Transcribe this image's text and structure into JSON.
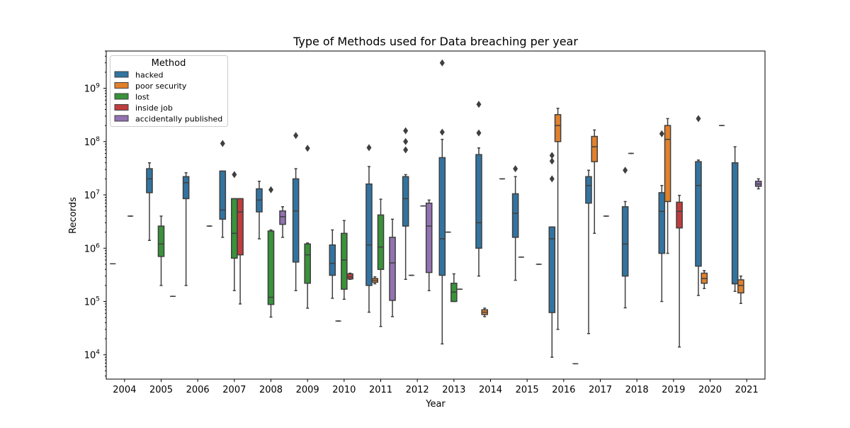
{
  "chart_data": {
    "type": "box",
    "title": "Type of Methods used for Data breaching per year",
    "xlabel": "Year",
    "ylabel": "Records",
    "y_scale": "log",
    "ylim": [
      3500,
      5000000000
    ],
    "y_ticks": [
      {
        "value": 10000,
        "base": "10",
        "exp": "4"
      },
      {
        "value": 100000,
        "base": "10",
        "exp": "5"
      },
      {
        "value": 1000000,
        "base": "10",
        "exp": "6"
      },
      {
        "value": 10000000,
        "base": "10",
        "exp": "7"
      },
      {
        "value": 100000000,
        "base": "10",
        "exp": "8"
      },
      {
        "value": 1000000000,
        "base": "10",
        "exp": "9"
      }
    ],
    "grid": false,
    "legend": {
      "title": "Method",
      "position": "top-left"
    },
    "categories": [
      "2004",
      "2005",
      "2006",
      "2007",
      "2008",
      "2009",
      "2010",
      "2011",
      "2012",
      "2013",
      "2014",
      "2015",
      "2016",
      "2017",
      "2018",
      "2019",
      "2020",
      "2021"
    ],
    "series": [
      {
        "name": "hacked",
        "color": "#3274a1",
        "boxes": [
          {
            "category": "2004",
            "min": 510000,
            "q1": 510000,
            "median": 510000,
            "q3": 510000,
            "max": 510000,
            "outliers": []
          },
          {
            "category": "2005",
            "min": 1400000,
            "q1": 11000000,
            "median": 20000000,
            "q3": 31000000,
            "max": 40000000,
            "outliers": []
          },
          {
            "category": "2006",
            "min": 200000,
            "q1": 8500000,
            "median": 17000000,
            "q3": 22000000,
            "max": 26000000,
            "outliers": []
          },
          {
            "category": "2007",
            "min": 1600000,
            "q1": 3500000,
            "median": 5200000,
            "q3": 28000000,
            "max": 28000000,
            "outliers": [
              92000000
            ]
          },
          {
            "category": "2008",
            "min": 1500000,
            "q1": 4800000,
            "median": 8000000,
            "q3": 13000000,
            "max": 18000000,
            "outliers": []
          },
          {
            "category": "2009",
            "min": 160000,
            "q1": 550000,
            "median": 5000000,
            "q3": 20000000,
            "max": 31000000,
            "outliers": [
              130000000
            ]
          },
          {
            "category": "2010",
            "min": 115000,
            "q1": 310000,
            "median": 520000,
            "q3": 1150000,
            "max": 2200000,
            "outliers": []
          },
          {
            "category": "2011",
            "min": 63000,
            "q1": 200000,
            "median": 1150000,
            "q3": 16000000,
            "max": 34000000,
            "outliers": [
              77000000
            ]
          },
          {
            "category": "2012",
            "min": 260000,
            "q1": 2600000,
            "median": 8500000,
            "q3": 22000000,
            "max": 24000000,
            "outliers": [
              70000000,
              100000000,
              160000000
            ]
          },
          {
            "category": "2013",
            "min": 16000,
            "q1": 310000,
            "median": 1500000,
            "q3": 50000000,
            "max": 110000000,
            "outliers": [
              150000000,
              3000000000
            ]
          },
          {
            "category": "2014",
            "min": 300000,
            "q1": 1000000,
            "median": 3000000,
            "q3": 57000000,
            "max": 76000000,
            "outliers": [
              145000000,
              500000000
            ]
          },
          {
            "category": "2015",
            "min": 250000,
            "q1": 1600000,
            "median": 4500000,
            "q3": 10500000,
            "max": 22000000,
            "outliers": [
              31000000
            ]
          },
          {
            "category": "2016",
            "min": 9000,
            "q1": 62000,
            "median": 1500000,
            "q3": 2500000,
            "max": 2500000,
            "outliers": [
              20000000,
              43000000,
              55000000
            ]
          },
          {
            "category": "2017",
            "min": 25000,
            "q1": 7000000,
            "median": 15000000,
            "q3": 22000000,
            "max": 29000000,
            "outliers": []
          },
          {
            "category": "2018",
            "min": 76000,
            "q1": 300000,
            "median": 1200000,
            "q3": 6000000,
            "max": 7500000,
            "outliers": [
              29000000
            ]
          },
          {
            "category": "2019",
            "min": 100000,
            "q1": 800000,
            "median": 4900000,
            "q3": 11000000,
            "max": 15000000,
            "outliers": [
              140000000
            ]
          },
          {
            "category": "2020",
            "min": 130000,
            "q1": 460000,
            "median": 15000000,
            "q3": 42000000,
            "max": 45000000,
            "outliers": [
              270000000
            ]
          },
          {
            "category": "2021",
            "min": 155000,
            "q1": 215000,
            "median": 215000,
            "q3": 40000000,
            "max": 80000000,
            "outliers": []
          }
        ]
      },
      {
        "name": "poor security",
        "color": "#e1812c",
        "boxes": [
          {
            "category": "2010",
            "min": 43000,
            "q1": 43000,
            "median": 43000,
            "q3": 43000,
            "max": 43000,
            "outliers": []
          },
          {
            "category": "2011",
            "min": 215000,
            "q1": 230000,
            "median": 250000,
            "q3": 270000,
            "max": 290000,
            "outliers": []
          },
          {
            "category": "2012",
            "min": 310000,
            "q1": 310000,
            "median": 310000,
            "q3": 310000,
            "max": 310000,
            "outliers": []
          },
          {
            "category": "2013",
            "min": 2000000,
            "q1": 2000000,
            "median": 2000000,
            "q3": 2000000,
            "max": 2000000,
            "outliers": []
          },
          {
            "category": "2014",
            "min": 52000,
            "q1": 57000,
            "median": 63000,
            "q3": 70000,
            "max": 75000,
            "outliers": []
          },
          {
            "category": "2015",
            "min": 680000,
            "q1": 680000,
            "median": 680000,
            "q3": 680000,
            "max": 680000,
            "outliers": []
          },
          {
            "category": "2016",
            "min": 30000,
            "q1": 100000000,
            "median": 200000000,
            "q3": 320000000,
            "max": 420000000,
            "outliers": []
          },
          {
            "category": "2017",
            "min": 1900000,
            "q1": 42000000,
            "median": 80000000,
            "q3": 125000000,
            "max": 165000000,
            "outliers": []
          },
          {
            "category": "2018",
            "min": 60000000,
            "q1": 60000000,
            "median": 60000000,
            "q3": 60000000,
            "max": 60000000,
            "outliers": []
          },
          {
            "category": "2019",
            "min": 800000,
            "q1": 7500000,
            "median": 110000000,
            "q3": 200000000,
            "max": 270000000,
            "outliers": []
          },
          {
            "category": "2020",
            "min": 175000,
            "q1": 220000,
            "median": 270000,
            "q3": 340000,
            "max": 380000,
            "outliers": []
          },
          {
            "category": "2021",
            "min": 92000,
            "q1": 145000,
            "median": 200000,
            "q3": 255000,
            "max": 300000,
            "outliers": []
          }
        ]
      },
      {
        "name": "lost",
        "color": "#3a923a",
        "boxes": [
          {
            "category": "2005",
            "min": 200000,
            "q1": 700000,
            "median": 1200000,
            "q3": 2600000,
            "max": 4000000,
            "outliers": []
          },
          {
            "category": "2007",
            "min": 160000,
            "q1": 650000,
            "median": 1900000,
            "q3": 8500000,
            "max": 8500000,
            "outliers": [
              24000000
            ]
          },
          {
            "category": "2008",
            "min": 51000,
            "q1": 88000,
            "median": 120000,
            "q3": 2100000,
            "max": 2200000,
            "outliers": [
              12500000
            ]
          },
          {
            "category": "2009",
            "min": 75000,
            "q1": 220000,
            "median": 750000,
            "q3": 1200000,
            "max": 1250000,
            "outliers": [
              75000000
            ]
          },
          {
            "category": "2010",
            "min": 110000,
            "q1": 170000,
            "median": 600000,
            "q3": 1900000,
            "max": 3300000,
            "outliers": []
          },
          {
            "category": "2011",
            "min": 34000,
            "q1": 400000,
            "median": 1050000,
            "q3": 4200000,
            "max": 8300000,
            "outliers": []
          },
          {
            "category": "2013",
            "min": 100000,
            "q1": 100000,
            "median": 150000,
            "q3": 220000,
            "max": 330000,
            "outliers": []
          }
        ]
      },
      {
        "name": "inside job",
        "color": "#c03d3e",
        "boxes": [
          {
            "category": "2004",
            "min": 4000000,
            "q1": 4000000,
            "median": 4000000,
            "q3": 4000000,
            "max": 4000000,
            "outliers": []
          },
          {
            "category": "2007",
            "min": 90000,
            "q1": 750000,
            "median": 4800000,
            "q3": 8500000,
            "max": 8500000,
            "outliers": []
          },
          {
            "category": "2010",
            "min": 260000,
            "q1": 265000,
            "median": 290000,
            "q3": 330000,
            "max": 340000,
            "outliers": []
          },
          {
            "category": "2012",
            "min": 6200000,
            "q1": 6200000,
            "median": 6200000,
            "q3": 6200000,
            "max": 6200000,
            "outliers": []
          },
          {
            "category": "2013",
            "min": 170000,
            "q1": 170000,
            "median": 170000,
            "q3": 170000,
            "max": 170000,
            "outliers": []
          },
          {
            "category": "2017",
            "min": 4000000,
            "q1": 4000000,
            "median": 4000000,
            "q3": 4000000,
            "max": 4000000,
            "outliers": []
          },
          {
            "category": "2019",
            "min": 14000,
            "q1": 2400000,
            "median": 4900000,
            "q3": 7300000,
            "max": 9800000,
            "outliers": []
          }
        ]
      },
      {
        "name": "accidentally published",
        "color": "#9372b2",
        "boxes": [
          {
            "category": "2005",
            "min": 125000,
            "q1": 125000,
            "median": 125000,
            "q3": 125000,
            "max": 125000,
            "outliers": []
          },
          {
            "category": "2006",
            "min": 2600000,
            "q1": 2600000,
            "median": 2600000,
            "q3": 2600000,
            "max": 2600000,
            "outliers": []
          },
          {
            "category": "2008",
            "min": 1600000,
            "q1": 2800000,
            "median": 3900000,
            "q3": 5000000,
            "max": 6000000,
            "outliers": []
          },
          {
            "category": "2011",
            "min": 52000,
            "q1": 105000,
            "median": 530000,
            "q3": 1600000,
            "max": 3500000,
            "outliers": []
          },
          {
            "category": "2012",
            "min": 160000,
            "q1": 350000,
            "median": 2600000,
            "q3": 7000000,
            "max": 8000000,
            "outliers": []
          },
          {
            "category": "2014",
            "min": 20000000,
            "q1": 20000000,
            "median": 20000000,
            "q3": 20000000,
            "max": 20000000,
            "outliers": []
          },
          {
            "category": "2015",
            "min": 500000,
            "q1": 500000,
            "median": 500000,
            "q3": 500000,
            "max": 500000,
            "outliers": []
          },
          {
            "category": "2016",
            "min": 6800,
            "q1": 6800,
            "median": 6800,
            "q3": 6800,
            "max": 6800,
            "outliers": []
          },
          {
            "category": "2020",
            "min": 200000000,
            "q1": 200000000,
            "median": 200000000,
            "q3": 200000000,
            "max": 200000000,
            "outliers": []
          },
          {
            "category": "2021",
            "min": 13000000,
            "q1": 14500000,
            "median": 16000000,
            "q3": 18000000,
            "max": 20000000,
            "outliers": []
          }
        ]
      }
    ]
  }
}
